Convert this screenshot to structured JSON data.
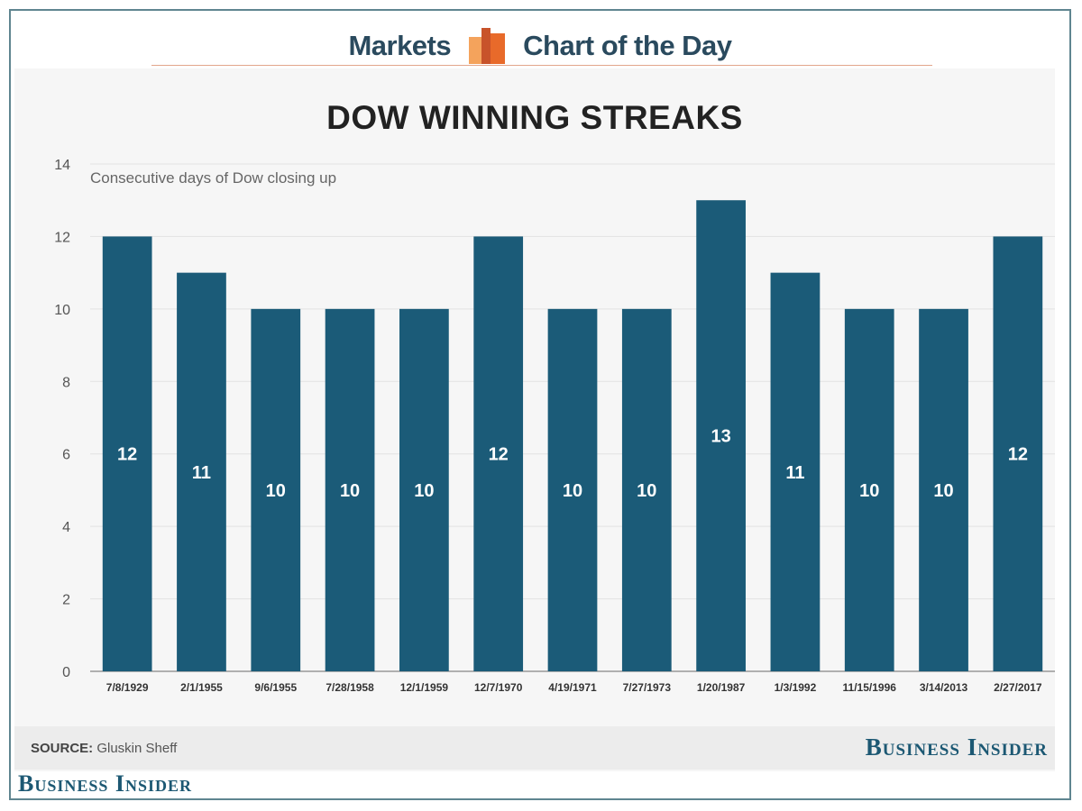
{
  "header": {
    "left_word": "Markets",
    "right_word": "Chart of the Day",
    "logo_icon": "bar-stack-logo-icon",
    "logo_colors": [
      "#f4a35c",
      "#e86a2a",
      "#c8532a"
    ]
  },
  "colors": {
    "bar": "#1b5b78",
    "bar_label": "#ffffff",
    "grid": "#e2e2e2",
    "axis": "#999999",
    "tick_text": "#555555",
    "brand": "#1c5873"
  },
  "chart_data": {
    "type": "bar",
    "title": "DOW WINNING STREAKS",
    "subtitle": "Consecutive days of Dow closing up",
    "xlabel": "",
    "ylabel": "",
    "ylim": [
      0,
      14
    ],
    "yticks": [
      0,
      2,
      4,
      6,
      8,
      10,
      12,
      14
    ],
    "grid": true,
    "legend": "none",
    "data_labels": "inside-middle",
    "categories": [
      "7/8/1929",
      "2/1/1955",
      "9/6/1955",
      "7/28/1958",
      "12/1/1959",
      "12/7/1970",
      "4/19/1971",
      "7/27/1973",
      "1/20/1987",
      "1/3/1992",
      "11/15/1996",
      "3/14/2013",
      "2/27/2017"
    ],
    "values": [
      12,
      11,
      10,
      10,
      10,
      12,
      10,
      10,
      13,
      11,
      10,
      10,
      12
    ]
  },
  "footer": {
    "source_label": "SOURCE:",
    "source_text": "Gluskin Sheff",
    "brand_right": "Business Insider",
    "brand_bottom": "Business Insider"
  }
}
